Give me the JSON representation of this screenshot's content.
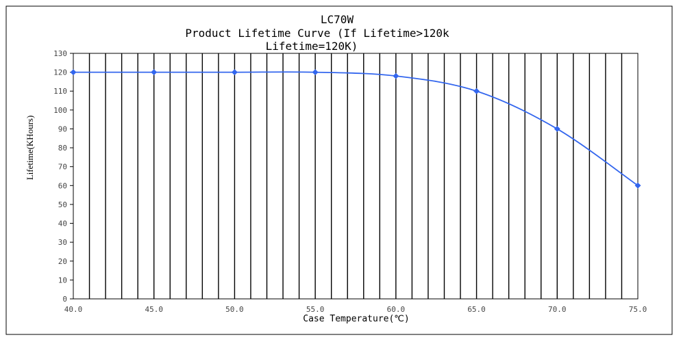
{
  "chart_data": {
    "type": "line",
    "title_lines": [
      "LC70W",
      "Product Lifetime Curve (If Lifetime>120k",
      "Lifetime=120K)"
    ],
    "xlabel": "Case Temperature(℃)",
    "ylabel": "Lifetime(KHours)",
    "x_ticks": [
      "40.0",
      "45.0",
      "50.0",
      "55.0",
      "60.0",
      "65.0",
      "70.0",
      "75.0"
    ],
    "y_ticks": [
      "0",
      "10",
      "20",
      "30",
      "40",
      "50",
      "60",
      "70",
      "80",
      "90",
      "100",
      "110",
      "120",
      "130"
    ],
    "xlim": [
      40,
      75
    ],
    "ylim": [
      0,
      130
    ],
    "grid": "vertical",
    "series": [
      {
        "x": [
          40,
          45,
          50,
          55,
          60,
          65,
          70,
          75
        ],
        "values": [
          120,
          120,
          120,
          120,
          118,
          110,
          90,
          60
        ],
        "color": "#3366ee"
      }
    ]
  }
}
